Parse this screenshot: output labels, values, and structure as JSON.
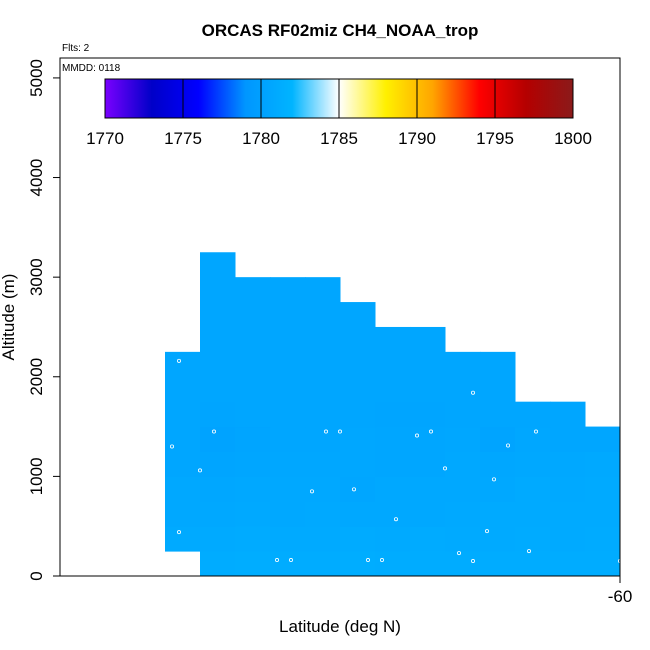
{
  "chart_data": {
    "type": "heatmap",
    "title": "ORCAS RF02miz CH4_NOAA_trop",
    "xlabel": "Latitude (deg N)",
    "ylabel": "Altitude (m)",
    "flights_note": "Flts: 2",
    "date_note": "MMDD: 0118",
    "xlim": [
      -60.8,
      -60.0
    ],
    "ylim": [
      0,
      5200
    ],
    "x_ticks": [
      {
        "value": -60,
        "label": "-60"
      }
    ],
    "y_ticks": [
      {
        "value": 0,
        "label": "0"
      },
      {
        "value": 1000,
        "label": "1000"
      },
      {
        "value": 2000,
        "label": "2000"
      },
      {
        "value": 3000,
        "label": "3000"
      },
      {
        "value": 4000,
        "label": "4000"
      },
      {
        "value": 5000,
        "label": "5000"
      }
    ],
    "colorbar": {
      "min": 1770,
      "max": 1800,
      "ticks": [
        "1770",
        "1775",
        "1780",
        "1785",
        "1790",
        "1795",
        "1800"
      ],
      "stops": [
        "#7a00ff",
        "#0000c8",
        "#0000ff",
        "#0096ff",
        "#00b4ff",
        "#ffffff",
        "#fff000",
        "#ffa500",
        "#ff0000",
        "#b40000",
        "#8b1a1a"
      ]
    },
    "cell_x_edges": [
      -60.65,
      -60.6,
      -60.55,
      -60.5,
      -60.45,
      -60.4,
      -60.35,
      -60.3,
      -60.25,
      -60.2,
      -60.15,
      -60.1,
      -60.05,
      -60.0
    ],
    "cell_y_edges": [
      0,
      250,
      500,
      750,
      1000,
      1250,
      1500,
      1750,
      2000,
      2250,
      2500,
      2750,
      3000,
      3250
    ],
    "cell_values": [
      [
        null,
        1781.2,
        1781.3,
        1781.2,
        1781.2,
        1781.3,
        1781.2,
        1781.2,
        1781.2,
        1781.2,
        1781.2,
        1781.2,
        1781.2
      ],
      [
        1781.0,
        1781.0,
        1781.1,
        1781.0,
        1781.0,
        1781.1,
        1781.0,
        1781.1,
        1781.0,
        1781.0,
        1781.1,
        1781.0,
        1781.1
      ],
      [
        1780.8,
        1780.8,
        1780.9,
        1780.8,
        1780.9,
        1780.8,
        1780.8,
        1780.8,
        1780.9,
        1781.0,
        1781.0,
        1781.0,
        1781.0
      ],
      [
        1780.8,
        1780.7,
        1780.8,
        1780.8,
        1780.8,
        1780.6,
        1780.8,
        1780.8,
        1780.8,
        1780.8,
        1781.0,
        1780.9,
        1781.0
      ],
      [
        1780.6,
        1780.5,
        1780.6,
        1780.7,
        1780.7,
        1780.7,
        1780.6,
        1780.6,
        1780.8,
        1780.7,
        1780.8,
        1780.8,
        1780.9
      ],
      [
        1780.6,
        1780.3,
        1780.5,
        1780.6,
        1780.6,
        1780.7,
        1780.6,
        1780.6,
        1780.7,
        1780.4,
        1780.7,
        1780.6,
        1780.6
      ],
      [
        1780.6,
        1780.5,
        1780.6,
        1780.6,
        1780.6,
        1780.6,
        1780.5,
        1780.5,
        1780.6,
        1780.6,
        1780.6,
        1780.6,
        null
      ],
      [
        1780.6,
        1780.6,
        1780.6,
        1780.6,
        1780.6,
        1780.6,
        1780.6,
        1780.6,
        1780.6,
        1780.6,
        null,
        null,
        null
      ],
      [
        1780.6,
        1780.6,
        1780.6,
        1780.6,
        1780.6,
        1780.6,
        1780.6,
        1780.6,
        1780.6,
        1780.6,
        null,
        null,
        null
      ],
      [
        null,
        1780.6,
        1780.6,
        1780.6,
        1780.6,
        1780.6,
        1780.6,
        1780.6,
        null,
        null,
        null,
        null,
        null
      ],
      [
        null,
        1780.6,
        1780.6,
        1780.6,
        1780.6,
        1780.6,
        null,
        null,
        null,
        null,
        null,
        null,
        null
      ],
      [
        null,
        1780.6,
        1780.6,
        1780.6,
        1780.6,
        null,
        null,
        null,
        null,
        null,
        null,
        null,
        null
      ],
      [
        null,
        1780.6,
        null,
        null,
        null,
        null,
        null,
        null,
        null,
        null,
        null,
        null,
        null
      ]
    ],
    "sample_points": [
      {
        "x": -60.61,
        "y": 3030
      },
      {
        "x": -60.63,
        "y": 2160
      },
      {
        "x": -60.64,
        "y": 1300
      },
      {
        "x": -60.58,
        "y": 1450
      },
      {
        "x": -60.6,
        "y": 1060
      },
      {
        "x": -60.63,
        "y": 440
      },
      {
        "x": -60.61,
        "y": 220
      },
      {
        "x": -60.64,
        "y": 160
      },
      {
        "x": -60.49,
        "y": 160
      },
      {
        "x": -60.47,
        "y": 160
      },
      {
        "x": -60.44,
        "y": 850
      },
      {
        "x": -60.42,
        "y": 1450
      },
      {
        "x": -60.4,
        "y": 1450
      },
      {
        "x": -60.38,
        "y": 870
      },
      {
        "x": -60.36,
        "y": 160
      },
      {
        "x": -60.34,
        "y": 160
      },
      {
        "x": -60.32,
        "y": 570
      },
      {
        "x": -60.29,
        "y": 1410
      },
      {
        "x": -60.27,
        "y": 1450
      },
      {
        "x": -60.25,
        "y": 1080
      },
      {
        "x": -60.23,
        "y": 230
      },
      {
        "x": -60.21,
        "y": 150
      },
      {
        "x": -60.21,
        "y": 1840
      },
      {
        "x": -60.19,
        "y": 450
      },
      {
        "x": -60.18,
        "y": 970
      },
      {
        "x": -60.16,
        "y": 1310
      },
      {
        "x": -60.13,
        "y": 250
      },
      {
        "x": -60.12,
        "y": 1450
      },
      {
        "x": -60.0,
        "y": 150
      }
    ]
  }
}
